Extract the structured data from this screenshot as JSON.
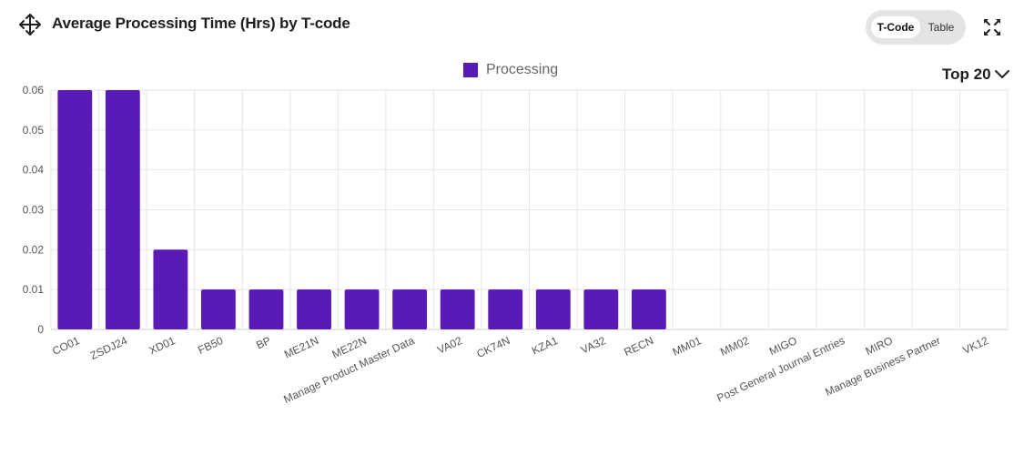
{
  "header": {
    "title": "Average Processing Time (Hrs) by T-code",
    "move_icon": "move-arrows-icon",
    "expand_icon": "expand-icon",
    "toggle": {
      "options": [
        "T-Code",
        "Table"
      ],
      "selected": "T-Code"
    },
    "top_selector": {
      "label": "Top 20",
      "icon": "chevron-down-icon"
    }
  },
  "colors": {
    "bar": "#5a1ab5",
    "grid": "#e6e6e6",
    "axis": "#cccccc"
  },
  "chart_data": {
    "type": "bar",
    "categories": [
      "CO01",
      "ZSDJ24",
      "XD01",
      "FB50",
      "BP",
      "ME21N",
      "ME22N",
      "Manage Product Master Data",
      "VA02",
      "CK74N",
      "KZA1",
      "VA32",
      "RECN",
      "MM01",
      "MM02",
      "MIGO",
      "Post General Journal Entries",
      "MIRO",
      "Manage Business Partner",
      "VK12"
    ],
    "series": [
      {
        "name": "Processing",
        "values": [
          0.06,
          0.06,
          0.02,
          0.01,
          0.01,
          0.01,
          0.01,
          0.01,
          0.01,
          0.01,
          0.01,
          0.01,
          0.01,
          0,
          0,
          0,
          0,
          0,
          0,
          0
        ]
      }
    ],
    "yticks": [
      "0",
      "0.01",
      "0.02",
      "0.03",
      "0.04",
      "0.05",
      "0.06"
    ],
    "ylim": [
      0,
      0.06
    ],
    "xlabel": "",
    "ylabel": "",
    "grid": true,
    "legend": "top-center"
  }
}
